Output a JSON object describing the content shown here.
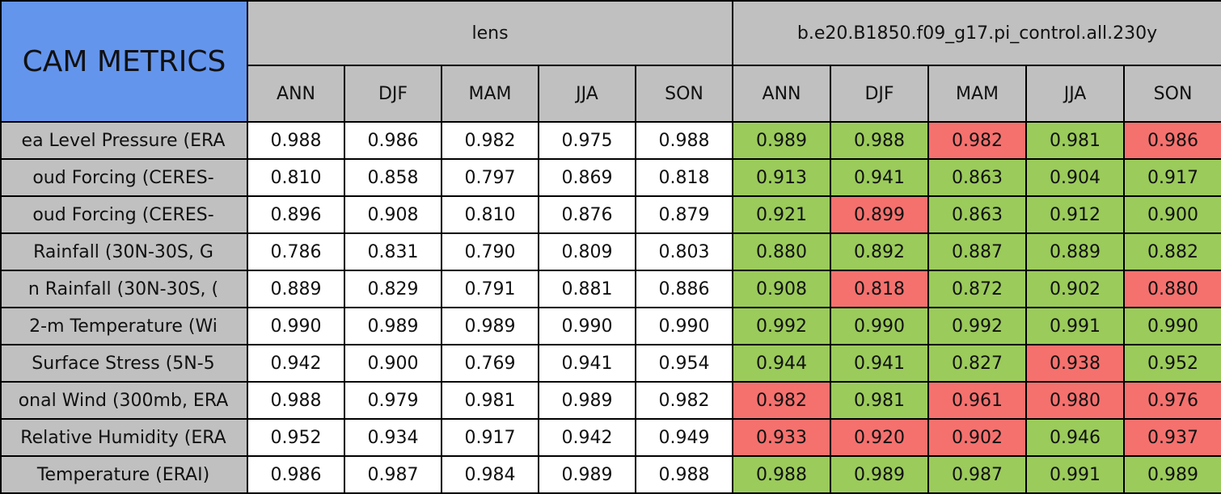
{
  "header": {
    "title": "CAM METRICS",
    "groups": [
      {
        "name": "lens",
        "columns": [
          "ANN",
          "DJF",
          "MAM",
          "JJA",
          "SON"
        ]
      },
      {
        "name": "b.e20.B1850.f09_g17.pi_control.all.230y",
        "columns": [
          "ANN",
          "DJF",
          "MAM",
          "JJA",
          "SON"
        ]
      }
    ]
  },
  "palette": {
    "better": "#9bcb5b",
    "worse": "#f4716e"
  },
  "rows": [
    {
      "label": "ea Level Pressure (ERA",
      "values": [
        "0.988",
        "0.986",
        "0.982",
        "0.975",
        "0.988",
        "0.989",
        "0.988",
        "0.982",
        "0.981",
        "0.986"
      ],
      "status": [
        "better",
        "better",
        "worse",
        "better",
        "worse"
      ]
    },
    {
      "label": "oud Forcing (CERES-",
      "values": [
        "0.810",
        "0.858",
        "0.797",
        "0.869",
        "0.818",
        "0.913",
        "0.941",
        "0.863",
        "0.904",
        "0.917"
      ],
      "status": [
        "better",
        "better",
        "better",
        "better",
        "better"
      ]
    },
    {
      "label": "oud Forcing (CERES-",
      "values": [
        "0.896",
        "0.908",
        "0.810",
        "0.876",
        "0.879",
        "0.921",
        "0.899",
        "0.863",
        "0.912",
        "0.900"
      ],
      "status": [
        "better",
        "worse",
        "better",
        "better",
        "better"
      ]
    },
    {
      "label": "Rainfall (30N-30S, G",
      "values": [
        "0.786",
        "0.831",
        "0.790",
        "0.809",
        "0.803",
        "0.880",
        "0.892",
        "0.887",
        "0.889",
        "0.882"
      ],
      "status": [
        "better",
        "better",
        "better",
        "better",
        "better"
      ]
    },
    {
      "label": "n Rainfall (30N-30S, (",
      "values": [
        "0.889",
        "0.829",
        "0.791",
        "0.881",
        "0.886",
        "0.908",
        "0.818",
        "0.872",
        "0.902",
        "0.880"
      ],
      "status": [
        "better",
        "worse",
        "better",
        "better",
        "worse"
      ]
    },
    {
      "label": "2-m Temperature (Wi",
      "values": [
        "0.990",
        "0.989",
        "0.989",
        "0.990",
        "0.990",
        "0.992",
        "0.990",
        "0.992",
        "0.991",
        "0.990"
      ],
      "status": [
        "better",
        "better",
        "better",
        "better",
        "better"
      ]
    },
    {
      "label": "Surface Stress (5N-5",
      "values": [
        "0.942",
        "0.900",
        "0.769",
        "0.941",
        "0.954",
        "0.944",
        "0.941",
        "0.827",
        "0.938",
        "0.952"
      ],
      "status": [
        "better",
        "better",
        "better",
        "worse",
        "better"
      ]
    },
    {
      "label": "onal Wind (300mb, ERA",
      "values": [
        "0.988",
        "0.979",
        "0.981",
        "0.989",
        "0.982",
        "0.982",
        "0.981",
        "0.961",
        "0.980",
        "0.976"
      ],
      "status": [
        "worse",
        "better",
        "worse",
        "worse",
        "worse"
      ]
    },
    {
      "label": "Relative Humidity (ERA",
      "values": [
        "0.952",
        "0.934",
        "0.917",
        "0.942",
        "0.949",
        "0.933",
        "0.920",
        "0.902",
        "0.946",
        "0.937"
      ],
      "status": [
        "worse",
        "worse",
        "worse",
        "better",
        "worse"
      ]
    },
    {
      "label": "Temperature (ERAI)",
      "values": [
        "0.986",
        "0.987",
        "0.984",
        "0.989",
        "0.988",
        "0.988",
        "0.989",
        "0.987",
        "0.991",
        "0.989"
      ],
      "status": [
        "better",
        "better",
        "better",
        "better",
        "better"
      ]
    }
  ]
}
